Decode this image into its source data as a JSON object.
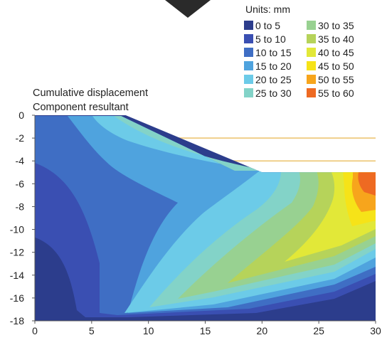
{
  "chart_data": {
    "type": "heatmap",
    "xlim": [
      0,
      30
    ],
    "ylim": [
      -18,
      0
    ],
    "x_ticks": [
      "0",
      "5",
      "10",
      "15",
      "20",
      "25",
      "30"
    ],
    "y_ticks": [
      "0",
      "-2",
      "-4",
      "-6",
      "-8",
      "-10",
      "-12",
      "-14",
      "-16",
      "-18"
    ],
    "annotation_lines": [
      "Cumulative displacement",
      "Component resultant"
    ],
    "legend": {
      "title": "Units: mm",
      "placement": "top-right",
      "bins": [
        {
          "label": "0 to 5",
          "color": "#2c3d8c"
        },
        {
          "label": "5 to 10",
          "color": "#3a4fb2"
        },
        {
          "label": "10 to 15",
          "color": "#3f6ec4"
        },
        {
          "label": "15 to 20",
          "color": "#4fa3de"
        },
        {
          "label": "20 to 25",
          "color": "#6ccbe8"
        },
        {
          "label": "25 to 30",
          "color": "#83d3c8"
        },
        {
          "label": "30 to 35",
          "color": "#98d191"
        },
        {
          "label": "35 to 40",
          "color": "#b6d35a"
        },
        {
          "label": "40 to 45",
          "color": "#e2e838"
        },
        {
          "label": "45 to 50",
          "color": "#f6e318"
        },
        {
          "label": "50 to 55",
          "color": "#f7a51c"
        },
        {
          "label": "55 to 60",
          "color": "#ee6a22"
        }
      ]
    },
    "domain_outline": {
      "x": [
        0,
        8,
        20,
        30,
        30,
        0
      ],
      "y": [
        0,
        0,
        -5,
        -5,
        -18,
        -18
      ]
    },
    "reference_lines_y": [
      -2,
      -4
    ],
    "grid": false
  }
}
